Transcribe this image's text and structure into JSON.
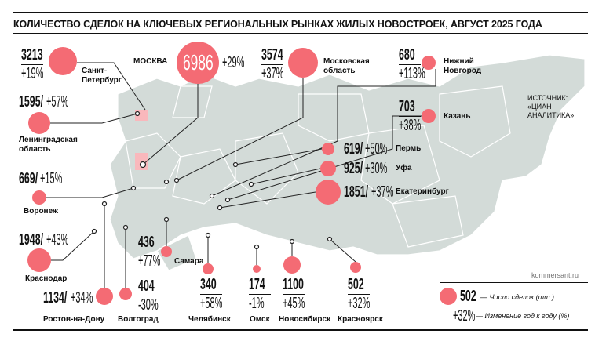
{
  "title": "КОЛИЧЕСТВО СДЕЛОК НА КЛЮЧЕВЫХ РЕГИОНАЛЬНЫХ РЫНКАХ ЖИЛЫХ НОВОСТРОЕК, АВГУСТ 2025 ГОДА",
  "source": "ИСТОЧНИК: «ЦИАН АНАЛИТИКА».",
  "site": "kommersant.ru",
  "colors": {
    "bubble": "#f46b74",
    "map": "#d3dbd8",
    "highlight": "#f9b8bc"
  },
  "regions": [
    {
      "name": "Санкт-Петербург",
      "deals": "3213",
      "change": "+19%"
    },
    {
      "name": "МОСКВА",
      "deals": "6986",
      "change": "+29%"
    },
    {
      "name": "Московская область",
      "deals": "3574",
      "change": "+37%"
    },
    {
      "name": "Нижний Новгород",
      "deals": "680",
      "change": "+113%"
    },
    {
      "name": "Ленинградская область",
      "deals": "1595",
      "change": "+57%"
    },
    {
      "name": "Казань",
      "deals": "703",
      "change": "+38%"
    },
    {
      "name": "Пермь",
      "deals": "619",
      "change": "+50%"
    },
    {
      "name": "Уфа",
      "deals": "925",
      "change": "+30%"
    },
    {
      "name": "Екатеринбург",
      "deals": "1851",
      "change": "+37%"
    },
    {
      "name": "Воронеж",
      "deals": "669",
      "change": "+15%"
    },
    {
      "name": "Краснодар",
      "deals": "1948",
      "change": "+43%"
    },
    {
      "name": "Самара",
      "deals": "436",
      "change": "+77%"
    },
    {
      "name": "Ростов-на-Дону",
      "deals": "1134",
      "change": "+34%"
    },
    {
      "name": "Волгоград",
      "deals": "404",
      "change": "-30%"
    },
    {
      "name": "Челябинск",
      "deals": "340",
      "change": "+58%"
    },
    {
      "name": "Омск",
      "deals": "174",
      "change": "-1%"
    },
    {
      "name": "Новосибирск",
      "deals": "1100",
      "change": "+45%"
    },
    {
      "name": "Красноярск",
      "deals": "502",
      "change": "+32%"
    }
  ],
  "legend": {
    "deals_example": "502",
    "deals_label": "— Число сделок (шт.)",
    "change_example": "+32%",
    "change_label": "— Изменение год к году (%)"
  }
}
